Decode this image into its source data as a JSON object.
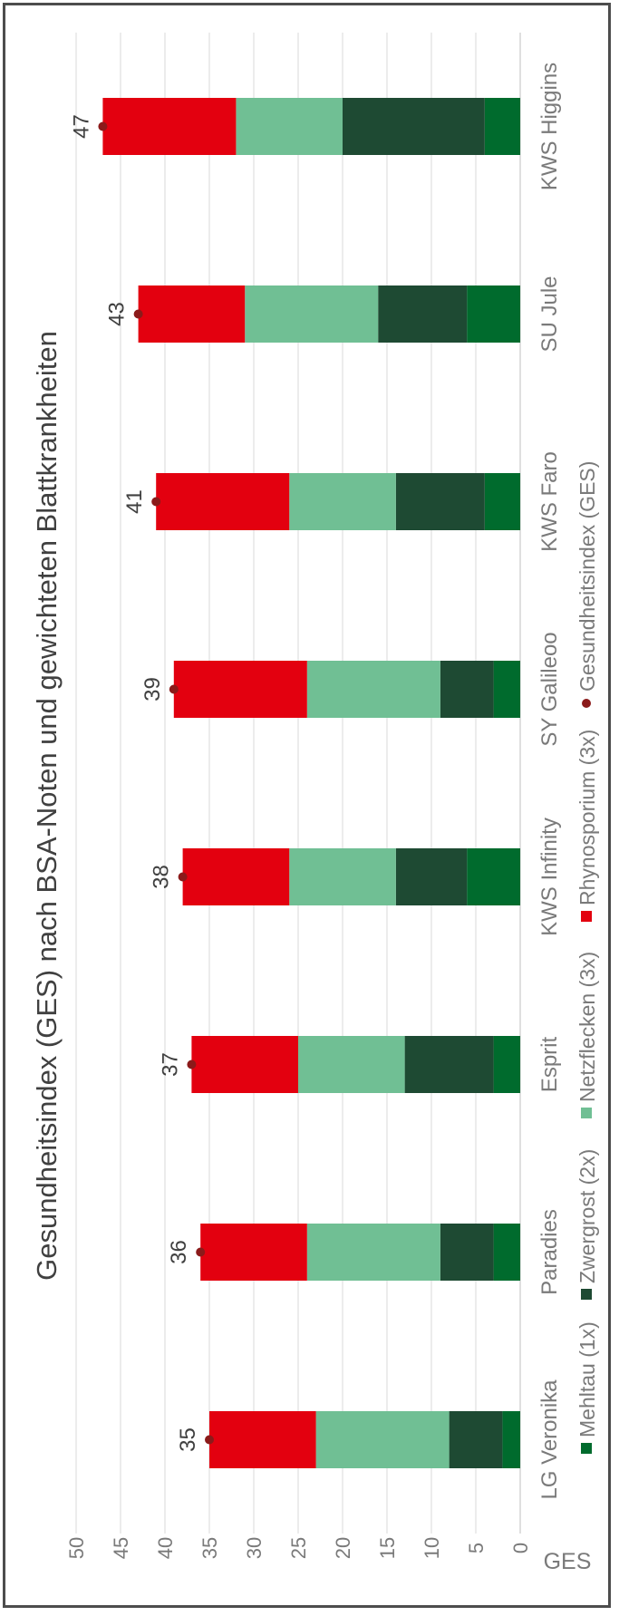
{
  "chart_data": {
    "type": "bar",
    "stacked": true,
    "orientation": "rotated-90-ccw",
    "title": "Gesundheitsindex (GES) nach BSA-Noten und gewichteten Blattkrankheiten",
    "xlabel": "",
    "ylabel": "GES",
    "ylim": [
      0,
      50
    ],
    "yticks": [
      "0",
      "5",
      "10",
      "15",
      "20",
      "25",
      "30",
      "35",
      "40",
      "45",
      "50"
    ],
    "grid": true,
    "legend_position": "bottom",
    "categories": [
      "LG Veronika",
      "Paradies",
      "Esprit",
      "KWS Infinity",
      "SY Galileoo",
      "KWS Faro",
      "SU Jule",
      "KWS Higgins"
    ],
    "series": [
      {
        "name": "Mehltau (1x)",
        "color": "#006b2d",
        "values": [
          2,
          3,
          3,
          6,
          3,
          4,
          6,
          4
        ]
      },
      {
        "name": "Zwergrost (2x)",
        "color": "#1e4a33",
        "values": [
          6,
          6,
          10,
          8,
          6,
          10,
          10,
          16
        ]
      },
      {
        "name": "Netzflecken (3x)",
        "color": "#70bf94",
        "values": [
          15,
          15,
          12,
          12,
          15,
          12,
          15,
          12
        ]
      },
      {
        "name": "Rhynosporium (3x)",
        "color": "#e3000f",
        "values": [
          12,
          12,
          12,
          12,
          15,
          15,
          12,
          15
        ]
      }
    ],
    "ges_series": {
      "name": "Gesundheitsindex (GES)",
      "color": "#8b1a1a",
      "values": [
        35,
        36,
        37,
        38,
        39,
        41,
        43,
        47
      ],
      "labels": [
        "35",
        "36",
        "37",
        "38",
        "39",
        "41",
        "43",
        "47"
      ]
    }
  }
}
